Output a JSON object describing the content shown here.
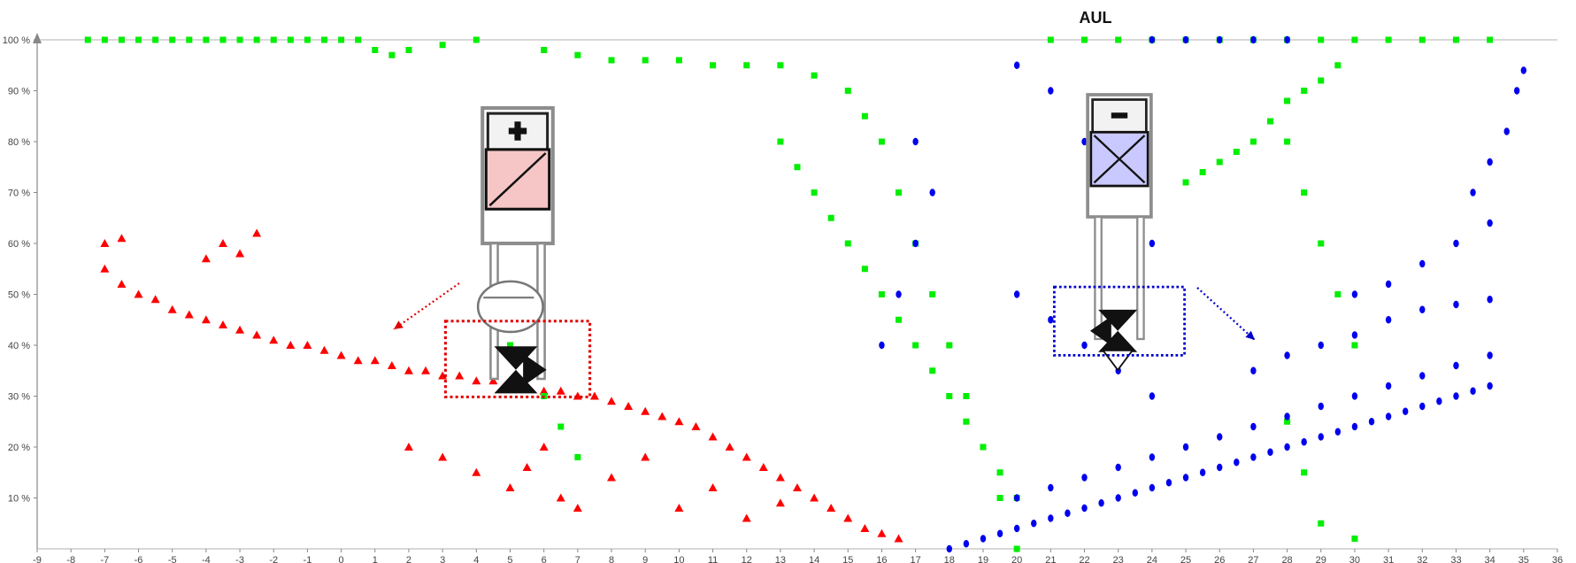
{
  "chart_data": {
    "type": "scatter",
    "title": "",
    "xlabel": "",
    "ylabel": "",
    "xlim": [
      -9,
      36
    ],
    "ylim": [
      0,
      100
    ],
    "x_ticks": [
      "-9",
      "-8",
      "-7",
      "-6",
      "-5",
      "-4",
      "-3",
      "-2",
      "-1",
      "0",
      "1",
      "2",
      "3",
      "4",
      "5",
      "6",
      "7",
      "8",
      "9",
      "10",
      "11",
      "12",
      "13",
      "14",
      "15",
      "16",
      "17",
      "18",
      "19",
      "20",
      "21",
      "22",
      "23",
      "24",
      "25",
      "26",
      "27",
      "28",
      "29",
      "30",
      "31",
      "32",
      "33",
      "34",
      "35",
      "36"
    ],
    "y_ticks": [
      "10 %",
      "20 %",
      "30 %",
      "40 %",
      "50 %",
      "60 %",
      "70 %",
      "80 %",
      "90 %",
      "100 %"
    ],
    "grid": false,
    "series": [
      {
        "color": "#ff0000",
        "marker": "triangle",
        "points": [
          [
            -7.0,
            55
          ],
          [
            -6.5,
            52
          ],
          [
            -6.0,
            50
          ],
          [
            -5.5,
            49
          ],
          [
            -5.0,
            47
          ],
          [
            -4.5,
            46
          ],
          [
            -4.0,
            45
          ],
          [
            -3.5,
            44
          ],
          [
            -3.0,
            43
          ],
          [
            -2.5,
            42
          ],
          [
            -2.0,
            41
          ],
          [
            -1.5,
            40
          ],
          [
            -1.0,
            40
          ],
          [
            -0.5,
            39
          ],
          [
            0.0,
            38
          ],
          [
            0.5,
            37
          ],
          [
            1.0,
            37
          ],
          [
            1.5,
            36
          ],
          [
            2.0,
            35
          ],
          [
            2.5,
            35
          ],
          [
            3.0,
            34
          ],
          [
            3.5,
            34
          ],
          [
            4.0,
            33
          ],
          [
            4.5,
            33
          ],
          [
            5.0,
            32
          ],
          [
            5.5,
            32
          ],
          [
            6.0,
            31
          ],
          [
            6.5,
            31
          ],
          [
            7.0,
            30
          ],
          [
            7.5,
            30
          ],
          [
            8.0,
            29
          ],
          [
            8.5,
            28
          ],
          [
            9.0,
            27
          ],
          [
            9.5,
            26
          ],
          [
            10.0,
            25
          ],
          [
            10.5,
            24
          ],
          [
            11.0,
            22
          ],
          [
            11.5,
            20
          ],
          [
            12.0,
            18
          ],
          [
            12.5,
            16
          ],
          [
            13.0,
            14
          ],
          [
            13.5,
            12
          ],
          [
            14.0,
            10
          ],
          [
            14.5,
            8
          ],
          [
            15.0,
            6
          ],
          [
            15.5,
            4
          ],
          [
            16.0,
            3
          ],
          [
            16.5,
            2
          ],
          [
            -7.0,
            60
          ],
          [
            -6.5,
            61
          ],
          [
            -3.5,
            60
          ],
          [
            -3.0,
            58
          ],
          [
            -4.0,
            57
          ],
          [
            -2.5,
            62
          ],
          [
            2.0,
            20
          ],
          [
            3.0,
            18
          ],
          [
            4.0,
            15
          ],
          [
            5.0,
            12
          ],
          [
            5.5,
            16
          ],
          [
            6.0,
            20
          ],
          [
            6.5,
            10
          ],
          [
            7.0,
            8
          ],
          [
            8.0,
            14
          ],
          [
            9.0,
            18
          ],
          [
            10.0,
            8
          ],
          [
            11.0,
            12
          ],
          [
            12.0,
            6
          ],
          [
            13.0,
            9
          ]
        ]
      },
      {
        "color": "#00ee00",
        "marker": "square",
        "points": [
          [
            -7.5,
            100
          ],
          [
            -7.0,
            100
          ],
          [
            -6.5,
            100
          ],
          [
            -6.0,
            100
          ],
          [
            -5.5,
            100
          ],
          [
            -5.0,
            100
          ],
          [
            -4.5,
            100
          ],
          [
            -4.0,
            100
          ],
          [
            -3.5,
            100
          ],
          [
            -3.0,
            100
          ],
          [
            -2.5,
            100
          ],
          [
            -2.0,
            100
          ],
          [
            -1.5,
            100
          ],
          [
            -1.0,
            100
          ],
          [
            -0.5,
            100
          ],
          [
            0.0,
            100
          ],
          [
            0.5,
            100
          ],
          [
            1.0,
            98
          ],
          [
            1.5,
            97
          ],
          [
            2.0,
            98
          ],
          [
            3.0,
            99
          ],
          [
            4.0,
            100
          ],
          [
            6.0,
            98
          ],
          [
            7.0,
            97
          ],
          [
            8.0,
            96
          ],
          [
            9.0,
            96
          ],
          [
            10.0,
            96
          ],
          [
            11.0,
            95
          ],
          [
            12.0,
            95
          ],
          [
            13.0,
            95
          ],
          [
            14.0,
            93
          ],
          [
            15.0,
            90
          ],
          [
            15.5,
            85
          ],
          [
            16.0,
            80
          ],
          [
            16.5,
            70
          ],
          [
            17.0,
            60
          ],
          [
            17.5,
            50
          ],
          [
            18.0,
            40
          ],
          [
            18.5,
            30
          ],
          [
            19.0,
            20
          ],
          [
            19.5,
            10
          ],
          [
            20.0,
            0
          ],
          [
            13.0,
            80
          ],
          [
            13.5,
            75
          ],
          [
            14.0,
            70
          ],
          [
            14.5,
            65
          ],
          [
            15.0,
            60
          ],
          [
            15.5,
            55
          ],
          [
            16.0,
            50
          ],
          [
            16.5,
            45
          ],
          [
            17.0,
            40
          ],
          [
            17.5,
            35
          ],
          [
            18.0,
            30
          ],
          [
            18.5,
            25
          ],
          [
            19.0,
            20
          ],
          [
            19.5,
            15
          ],
          [
            20.0,
            10
          ],
          [
            21.0,
            100
          ],
          [
            22.0,
            100
          ],
          [
            23.0,
            100
          ],
          [
            24.0,
            100
          ],
          [
            25.0,
            100
          ],
          [
            26.0,
            100
          ],
          [
            27.0,
            100
          ],
          [
            28.0,
            100
          ],
          [
            29.0,
            100
          ],
          [
            30.0,
            100
          ],
          [
            31.0,
            100
          ],
          [
            32.0,
            100
          ],
          [
            33.0,
            100
          ],
          [
            34.0,
            100
          ],
          [
            25.0,
            72
          ],
          [
            25.5,
            74
          ],
          [
            26.0,
            76
          ],
          [
            26.5,
            78
          ],
          [
            27.0,
            80
          ],
          [
            27.5,
            84
          ],
          [
            28.0,
            88
          ],
          [
            28.5,
            90
          ],
          [
            29.0,
            92
          ],
          [
            29.5,
            95
          ],
          [
            28.0,
            80
          ],
          [
            28.5,
            70
          ],
          [
            29.0,
            60
          ],
          [
            29.5,
            50
          ],
          [
            30.0,
            40
          ],
          [
            28.0,
            25
          ],
          [
            28.5,
            15
          ],
          [
            29.0,
            5
          ],
          [
            30.0,
            2
          ],
          [
            5.0,
            40
          ],
          [
            5.5,
            35
          ],
          [
            6.0,
            30
          ],
          [
            6.5,
            24
          ],
          [
            7.0,
            18
          ]
        ]
      },
      {
        "color": "#0000ee",
        "marker": "circle",
        "points": [
          [
            18.0,
            0
          ],
          [
            18.5,
            1
          ],
          [
            19.0,
            2
          ],
          [
            19.5,
            3
          ],
          [
            20.0,
            4
          ],
          [
            20.5,
            5
          ],
          [
            21.0,
            6
          ],
          [
            21.5,
            7
          ],
          [
            22.0,
            8
          ],
          [
            22.5,
            9
          ],
          [
            23.0,
            10
          ],
          [
            23.5,
            11
          ],
          [
            24.0,
            12
          ],
          [
            24.5,
            13
          ],
          [
            25.0,
            14
          ],
          [
            25.5,
            15
          ],
          [
            26.0,
            16
          ],
          [
            26.5,
            17
          ],
          [
            27.0,
            18
          ],
          [
            27.5,
            19
          ],
          [
            28.0,
            20
          ],
          [
            28.5,
            21
          ],
          [
            29.0,
            22
          ],
          [
            29.5,
            23
          ],
          [
            30.0,
            24
          ],
          [
            30.5,
            25
          ],
          [
            31.0,
            26
          ],
          [
            31.5,
            27
          ],
          [
            32.0,
            28
          ],
          [
            32.5,
            29
          ],
          [
            33.0,
            30
          ],
          [
            33.5,
            31
          ],
          [
            34.0,
            32
          ],
          [
            20.0,
            10
          ],
          [
            21.0,
            12
          ],
          [
            22.0,
            14
          ],
          [
            23.0,
            16
          ],
          [
            24.0,
            18
          ],
          [
            25.0,
            20
          ],
          [
            26.0,
            22
          ],
          [
            27.0,
            24
          ],
          [
            28.0,
            26
          ],
          [
            29.0,
            28
          ],
          [
            30.0,
            30
          ],
          [
            31.0,
            32
          ],
          [
            32.0,
            34
          ],
          [
            33.0,
            36
          ],
          [
            34.0,
            38
          ],
          [
            27.0,
            35
          ],
          [
            28.0,
            38
          ],
          [
            29.0,
            40
          ],
          [
            30.0,
            42
          ],
          [
            31.0,
            45
          ],
          [
            32.0,
            47
          ],
          [
            33.0,
            48
          ],
          [
            34.0,
            49
          ],
          [
            30.0,
            50
          ],
          [
            31.0,
            52
          ],
          [
            32.0,
            56
          ],
          [
            33.0,
            60
          ],
          [
            34.0,
            64
          ],
          [
            33.5,
            70
          ],
          [
            34.0,
            76
          ],
          [
            34.5,
            82
          ],
          [
            34.8,
            90
          ],
          [
            35.0,
            94
          ],
          [
            24.0,
            100
          ],
          [
            25.0,
            100
          ],
          [
            26.0,
            100
          ],
          [
            27.0,
            100
          ],
          [
            28.0,
            100
          ],
          [
            20.0,
            95
          ],
          [
            21.0,
            90
          ],
          [
            22.0,
            80
          ],
          [
            23.0,
            70
          ],
          [
            24.0,
            60
          ],
          [
            20.0,
            50
          ],
          [
            21.0,
            45
          ],
          [
            22.0,
            40
          ],
          [
            23.0,
            35
          ],
          [
            24.0,
            30
          ],
          [
            16.0,
            40
          ],
          [
            16.5,
            50
          ],
          [
            17.0,
            60
          ],
          [
            17.5,
            70
          ],
          [
            17.0,
            80
          ]
        ]
      }
    ]
  },
  "diagram": {
    "title": "AUL",
    "left_colors": {
      "box_fill": "#f6c6c6",
      "box_stroke": "#111111",
      "dotted": "#e00000"
    },
    "right_colors": {
      "box_fill": "#c9c9ff",
      "box_stroke": "#111111",
      "dotted": "#0000cc"
    }
  }
}
